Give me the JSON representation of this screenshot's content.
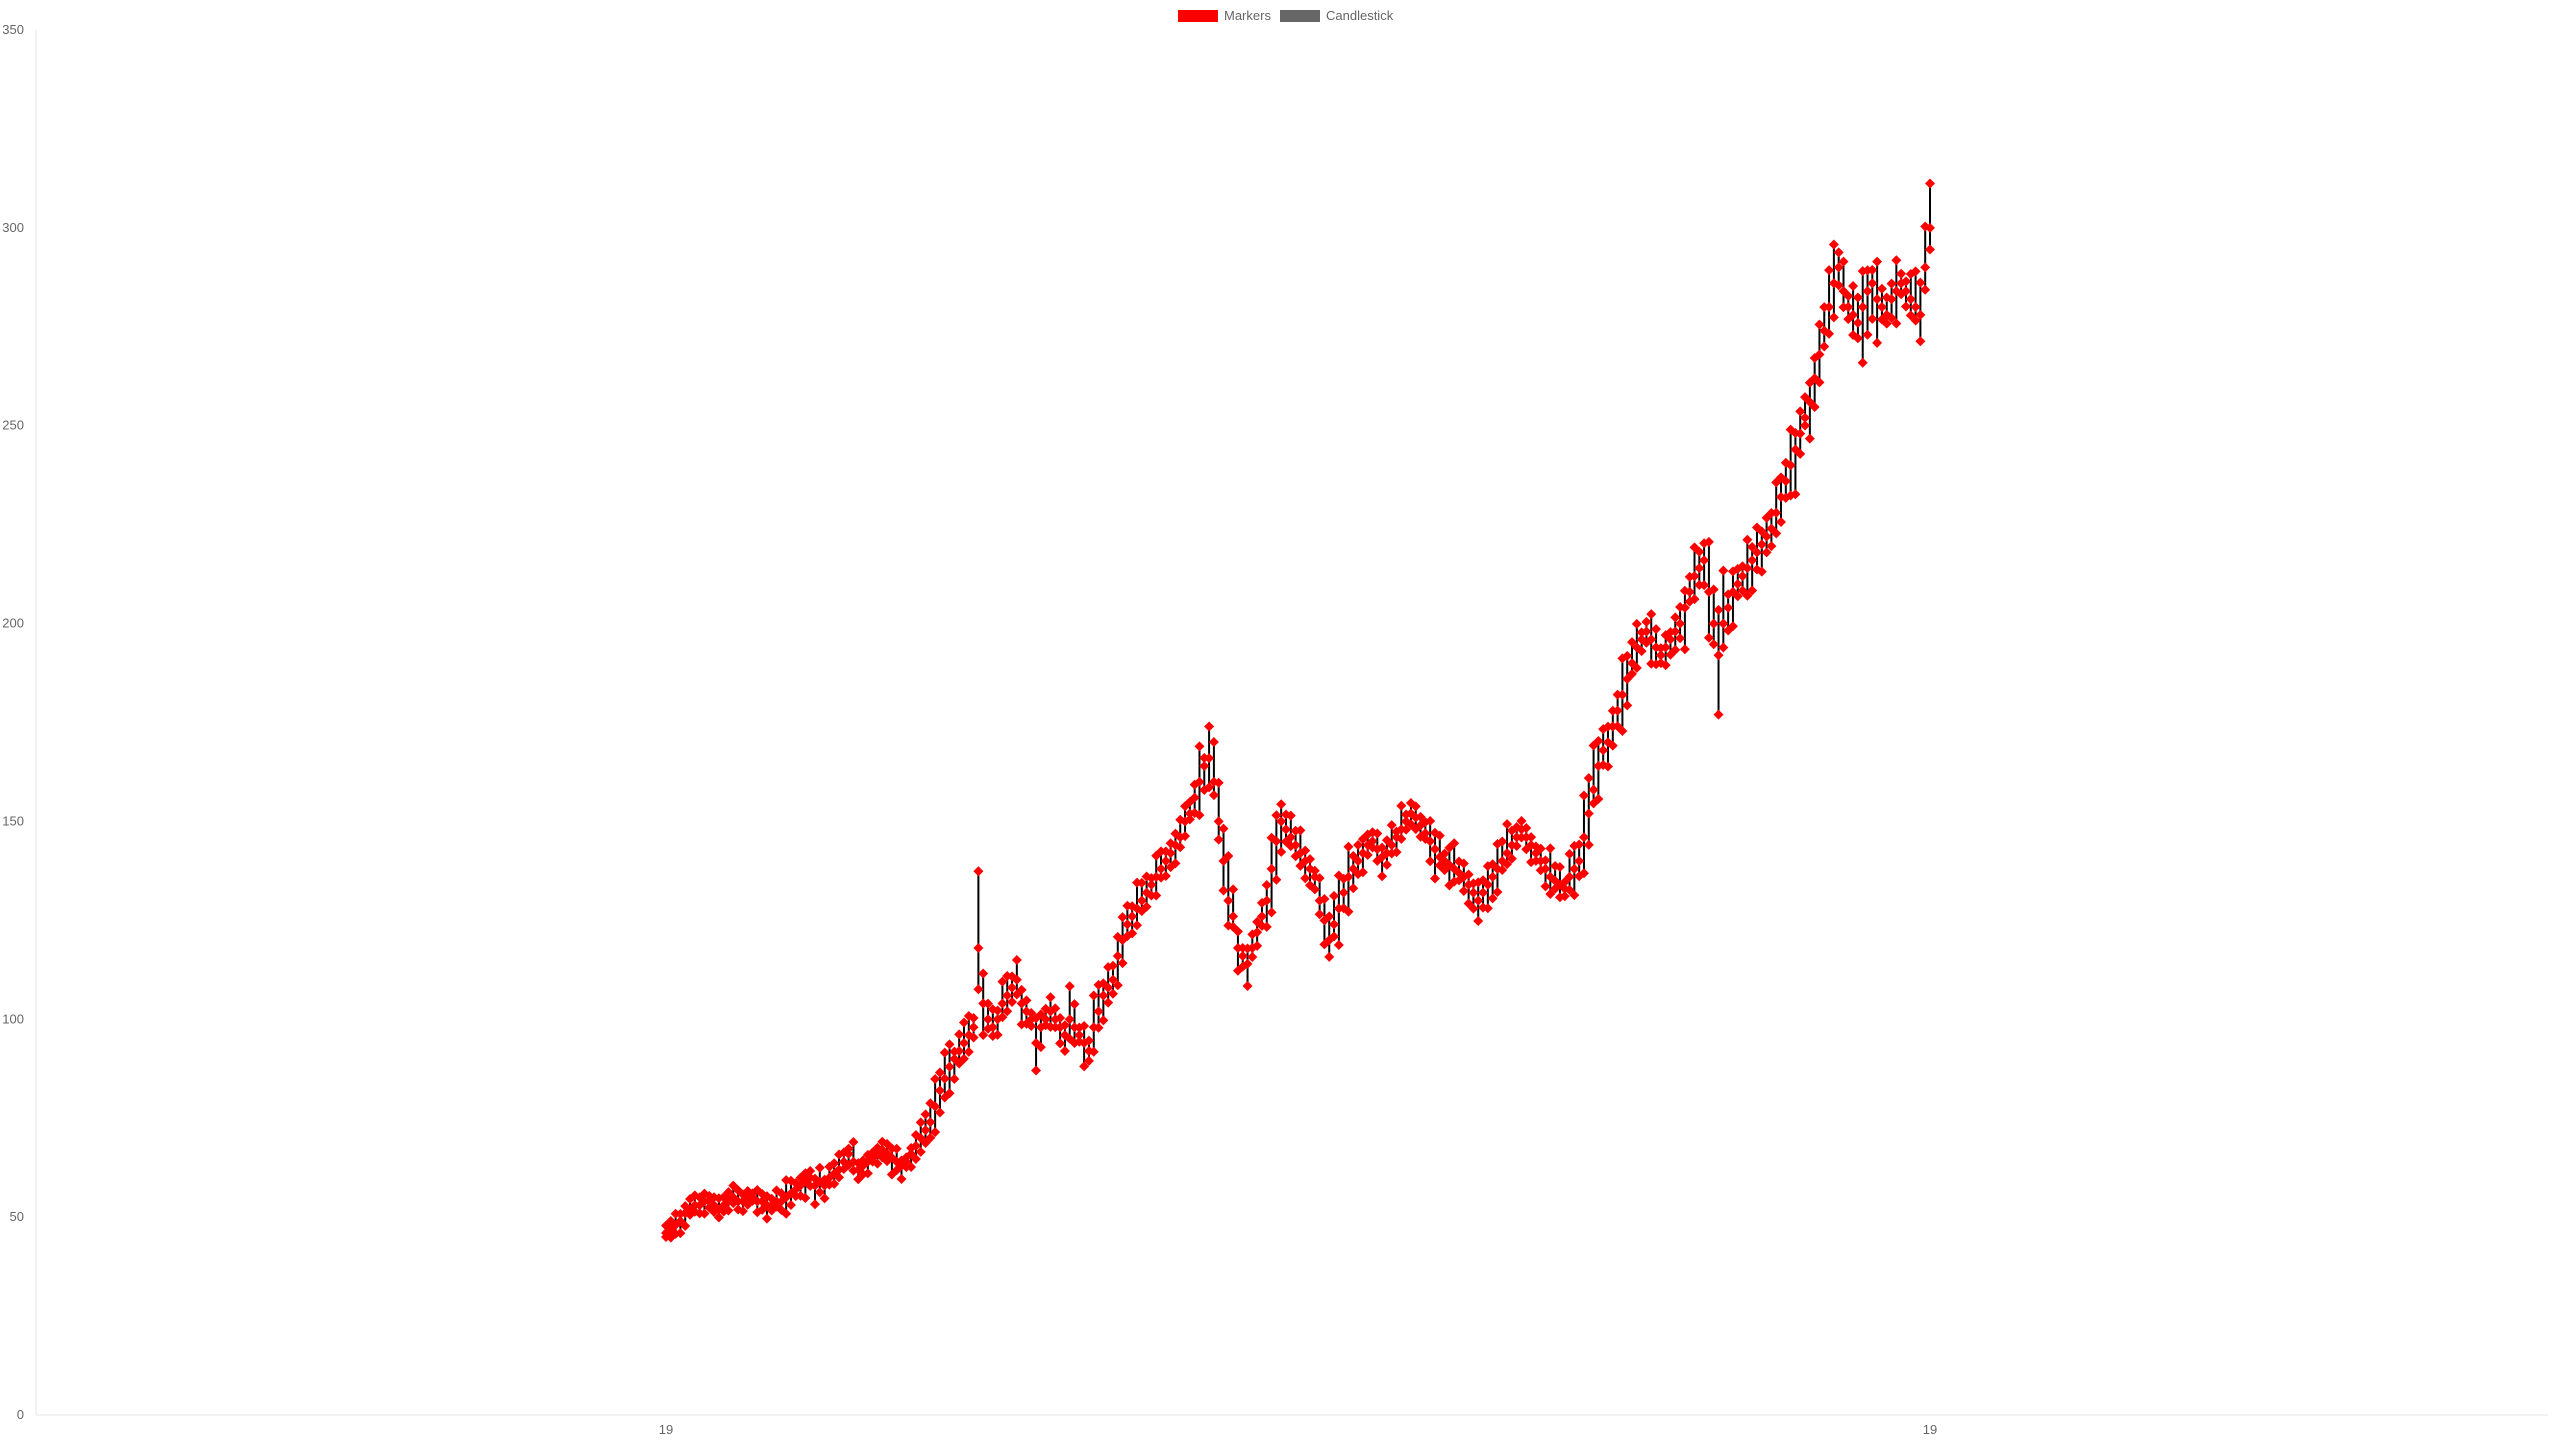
{
  "chart_data": {
    "type": "candlestick",
    "title": "",
    "xlabel": "",
    "ylabel": "",
    "ylim": [
      0,
      350
    ],
    "y_ticks": [
      "0",
      "50",
      "100",
      "150",
      "200",
      "250",
      "300",
      "350"
    ],
    "x_ticks": [
      "19",
      "19"
    ],
    "grid": false,
    "legend": {
      "placement": "top-center",
      "items": [
        {
          "name": "Markers",
          "color": "#ff0000"
        },
        {
          "name": "Candlestick",
          "color": "#666666"
        }
      ]
    },
    "colors": {
      "marker": "#ff0000",
      "wick": "#000000",
      "axis": "#e5e5e5",
      "tick_text": "#666666"
    },
    "series": [
      {
        "name": "Candlestick",
        "values": [
          46,
          47,
          48,
          49,
          51,
          52,
          53,
          53,
          54,
          54,
          53,
          52,
          53,
          54,
          55,
          54,
          54,
          55,
          55,
          54,
          54,
          53,
          53,
          54,
          54,
          55,
          56,
          57,
          58,
          59,
          60,
          58,
          59,
          58,
          60,
          61,
          62,
          64,
          66,
          64,
          62,
          63,
          64,
          65,
          66,
          67,
          66,
          65,
          64,
          63,
          64,
          66,
          68,
          70,
          72,
          74,
          78,
          82,
          85,
          88,
          90,
          92,
          94,
          96,
          98,
          118,
          104,
          100,
          98,
          100,
          104,
          106,
          108,
          110,
          104,
          102,
          100,
          94,
          98,
          100,
          102,
          100,
          98,
          96,
          100,
          98,
          96,
          94,
          92,
          98,
          102,
          106,
          108,
          110,
          116,
          120,
          124,
          126,
          128,
          130,
          132,
          134,
          136,
          138,
          140,
          142,
          144,
          146,
          150,
          152,
          156,
          160,
          164,
          166,
          160,
          150,
          140,
          130,
          126,
          118,
          116,
          114,
          118,
          122,
          126,
          130,
          138,
          145,
          150,
          148,
          146,
          144,
          142,
          140,
          138,
          136,
          130,
          125,
          120,
          124,
          128,
          132,
          136,
          138,
          140,
          142,
          144,
          145,
          143,
          141,
          142,
          144,
          146,
          148,
          150,
          152,
          151,
          149,
          147,
          145,
          143,
          141,
          140,
          139,
          138,
          137,
          136,
          134,
          132,
          130,
          132,
          134,
          136,
          138,
          140,
          142,
          144,
          146,
          148,
          146,
          144,
          142,
          140,
          138,
          136,
          135,
          134,
          133,
          136,
          138,
          140,
          146,
          152,
          158,
          164,
          168,
          170,
          174,
          178,
          182,
          186,
          190,
          194,
          196,
          198,
          196,
          194,
          192,
          194,
          196,
          198,
          200,
          204,
          208,
          212,
          214,
          216,
          208,
          200,
          192,
          200,
          204,
          208,
          210,
          212,
          214,
          216,
          218,
          220,
          222,
          224,
          228,
          232,
          236,
          240,
          244,
          248,
          252,
          256,
          262,
          268,
          274,
          280,
          286,
          290,
          284,
          280,
          278,
          276,
          280,
          284,
          286,
          282,
          280,
          278,
          282,
          284,
          286,
          284,
          282,
          280,
          278,
          290,
          300
        ]
      }
    ]
  }
}
